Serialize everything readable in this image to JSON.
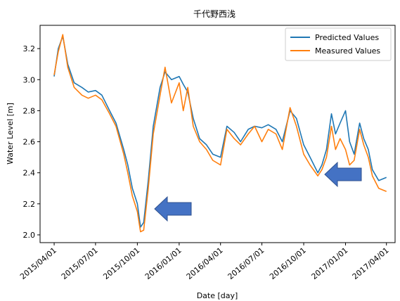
{
  "chart_data": {
    "type": "line",
    "title": "千代野西浅",
    "xlabel": "Date [day]",
    "ylabel": "Water Level [m]",
    "x_ticks": [
      "2015/04/01",
      "2015/07/01",
      "2015/10/01",
      "2016/01/01",
      "2016/04/01",
      "2016/07/01",
      "2016/10/01",
      "2017/01/01",
      "2017/04/01"
    ],
    "y_ticks": [
      "2.0",
      "2.2",
      "2.4",
      "2.6",
      "2.8",
      "3.0",
      "3.2"
    ],
    "xlim": [
      "2015/03/01",
      "2017/04/20"
    ],
    "ylim": [
      1.95,
      3.35
    ],
    "grid": false,
    "legend_position": "top-right",
    "dates": [
      "2015/04/01",
      "2015/04/10",
      "2015/04/20",
      "2015/05/01",
      "2015/05/15",
      "2015/06/01",
      "2015/06/15",
      "2015/07/01",
      "2015/07/15",
      "2015/08/01",
      "2015/08/15",
      "2015/09/01",
      "2015/09/10",
      "2015/09/20",
      "2015/10/01",
      "2015/10/08",
      "2015/10/15",
      "2015/10/25",
      "2015/11/05",
      "2015/11/20",
      "2015/12/01",
      "2015/12/15",
      "2016/01/01",
      "2016/01/10",
      "2016/01/20",
      "2016/02/01",
      "2016/02/15",
      "2016/03/01",
      "2016/03/15",
      "2016/04/01",
      "2016/04/15",
      "2016/05/01",
      "2016/05/15",
      "2016/06/01",
      "2016/06/15",
      "2016/07/01",
      "2016/07/15",
      "2016/08/01",
      "2016/08/15",
      "2016/09/01",
      "2016/09/15",
      "2016/10/01",
      "2016/10/15",
      "2016/11/01",
      "2016/11/10",
      "2016/11/20",
      "2016/12/01",
      "2016/12/10",
      "2016/12/20",
      "2017/01/01",
      "2017/01/10",
      "2017/01/20",
      "2017/02/01",
      "2017/02/10",
      "2017/02/20",
      "2017/03/01",
      "2017/03/15",
      "2017/04/01"
    ],
    "series": [
      {
        "name": "Predicted Values",
        "color": "#1f77b4",
        "values": [
          3.02,
          3.2,
          3.28,
          3.1,
          2.98,
          2.95,
          2.92,
          2.93,
          2.9,
          2.8,
          2.72,
          2.55,
          2.45,
          2.3,
          2.2,
          2.05,
          2.08,
          2.35,
          2.7,
          2.95,
          3.05,
          3.0,
          3.02,
          2.97,
          2.92,
          2.75,
          2.62,
          2.58,
          2.52,
          2.5,
          2.7,
          2.66,
          2.6,
          2.68,
          2.7,
          2.69,
          2.71,
          2.68,
          2.6,
          2.8,
          2.75,
          2.58,
          2.5,
          2.4,
          2.45,
          2.55,
          2.78,
          2.65,
          2.72,
          2.8,
          2.6,
          2.52,
          2.72,
          2.62,
          2.55,
          2.42,
          2.35,
          2.37
        ]
      },
      {
        "name": "Measured Values",
        "color": "#ff7f0e",
        "values": [
          3.03,
          3.18,
          3.29,
          3.08,
          2.95,
          2.9,
          2.88,
          2.9,
          2.87,
          2.78,
          2.7,
          2.52,
          2.4,
          2.25,
          2.15,
          2.02,
          2.03,
          2.3,
          2.65,
          2.9,
          3.08,
          2.85,
          2.98,
          2.8,
          2.95,
          2.7,
          2.6,
          2.55,
          2.48,
          2.45,
          2.68,
          2.62,
          2.58,
          2.65,
          2.7,
          2.6,
          2.68,
          2.65,
          2.55,
          2.82,
          2.7,
          2.52,
          2.45,
          2.38,
          2.42,
          2.5,
          2.7,
          2.55,
          2.62,
          2.55,
          2.45,
          2.48,
          2.68,
          2.58,
          2.5,
          2.38,
          2.3,
          2.28
        ]
      }
    ],
    "annotations": [
      {
        "type": "arrow",
        "shape": "blue-arrow-icon",
        "points_to": "2015/10 minimum",
        "color": "#4472c4"
      },
      {
        "type": "arrow",
        "shape": "blue-arrow-icon",
        "points_to": "2016/11 dip",
        "color": "#4472c4"
      }
    ]
  }
}
